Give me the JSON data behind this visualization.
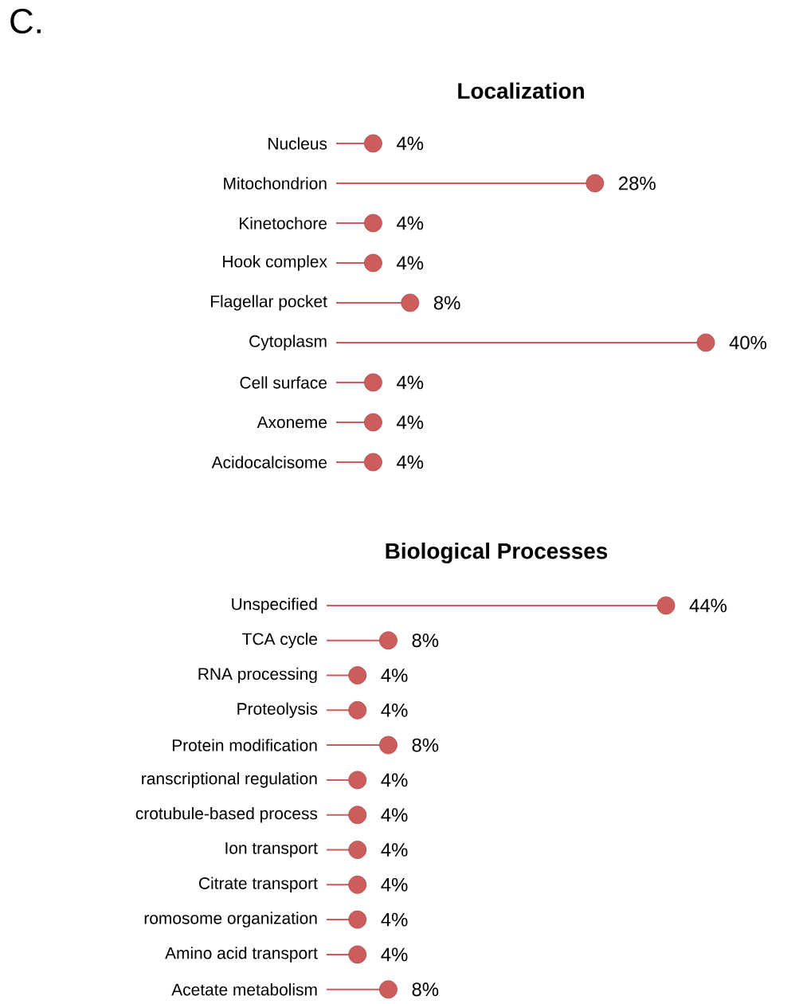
{
  "chart_data": [
    {
      "type": "lollipop",
      "orientation": "horizontal",
      "title": "Localization",
      "annotations": [
        "C."
      ],
      "color": "#cd5c5c",
      "categories": [
        "Nucleus",
        "Mitochondrion",
        "Kinetochore",
        "Hook complex",
        "Flagellar pocket",
        "Cytoplasm",
        "Cell surface",
        "Axoneme",
        "Acidocalcisome"
      ],
      "values": [
        4,
        28,
        4,
        4,
        8,
        40,
        4,
        4,
        4
      ],
      "value_labels": [
        "4%",
        "28%",
        "4%",
        "4%",
        "8%",
        "40%",
        "4%",
        "4%",
        "4%"
      ],
      "marker": "circle"
    },
    {
      "type": "lollipop",
      "orientation": "horizontal",
      "title": "Biological Processes",
      "color": "#cd5c5c",
      "categories": [
        "Unspecified",
        "TCA cycle",
        "RNA processing",
        "Proteolysis",
        "Protein modification",
        "ranscriptional regulation",
        "crotubule-based process",
        "Ion transport",
        "Citrate transport",
        "romosome organization",
        "Amino acid transport",
        "Acetate metabolism"
      ],
      "values": [
        44,
        8,
        4,
        4,
        8,
        4,
        4,
        4,
        4,
        4,
        4,
        8
      ],
      "value_labels": [
        "44%",
        "8%",
        "4%",
        "4%",
        "8%",
        "4%",
        "4%",
        "4%",
        "4%",
        "4%",
        "4%",
        "8%"
      ],
      "marker": "circle"
    }
  ]
}
